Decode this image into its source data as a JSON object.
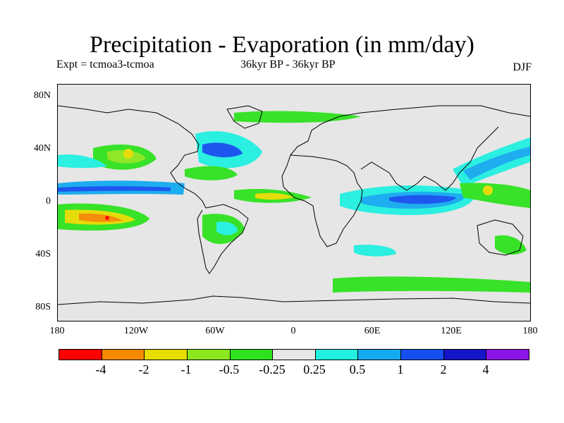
{
  "title": "Precipitation - Evaporation (in mm/day)",
  "experiment": "Expt = tcmoa3-tcmoa",
  "period": "36kyr BP - 36kyr BP",
  "season": "DJF",
  "axes": {
    "lat_labels": [
      "80N",
      "40N",
      "0",
      "40S",
      "80S"
    ],
    "lon_labels": [
      "180",
      "120W",
      "60W",
      "0",
      "60E",
      "120E",
      "180"
    ]
  },
  "colorbar": {
    "colors": [
      "#ff0000",
      "#f58a00",
      "#e6dc00",
      "#8ce61e",
      "#2ee21e",
      "#e6e6e6",
      "#22f0e0",
      "#14aaf0",
      "#1450f0",
      "#1414c8",
      "#8c14e6"
    ],
    "labels": [
      "-4",
      "-2",
      "-1",
      "-0.5",
      "-0.25",
      "0.25",
      "0.5",
      "1",
      "2",
      "4"
    ]
  }
}
